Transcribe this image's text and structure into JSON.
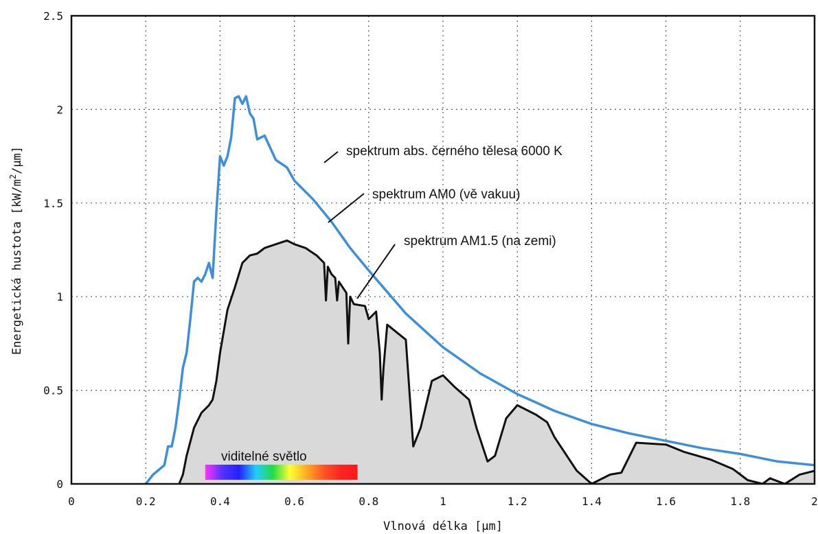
{
  "chart_data": {
    "type": "line",
    "xlabel": "Vlnová délka [µm]",
    "ylabel": "Energetická hustota [kW/m2/µm]",
    "ylabel_main": "Energetická hustota [kW/m",
    "ylabel_sup": "2",
    "ylabel_tail": "/µm]",
    "xlim": [
      0,
      2
    ],
    "ylim": [
      0,
      2.5
    ],
    "x_ticks": [
      0,
      0.2,
      0.4,
      0.6,
      0.8,
      1,
      1.2,
      1.4,
      1.6,
      1.8,
      2
    ],
    "x_tick_labels": [
      "0",
      "0.2",
      "0.4",
      "0.6",
      "0.8",
      "1",
      "1.2",
      "1.4",
      "1.6",
      "1.8",
      "2"
    ],
    "y_ticks": [
      0,
      0.5,
      1,
      1.5,
      2,
      2.5
    ],
    "y_tick_labels": [
      "0",
      "0.5",
      "1",
      "1.5",
      "2",
      "2.5"
    ],
    "grid": true,
    "series": [
      {
        "name": "spektrum AM0 (vě vakuu)",
        "color": "#3b8fdc",
        "x": [
          0.2,
          0.22,
          0.25,
          0.26,
          0.27,
          0.28,
          0.29,
          0.3,
          0.31,
          0.32,
          0.33,
          0.34,
          0.35,
          0.36,
          0.37,
          0.38,
          0.39,
          0.4,
          0.41,
          0.42,
          0.43,
          0.44,
          0.45,
          0.46,
          0.47,
          0.48,
          0.49,
          0.5,
          0.52,
          0.55,
          0.58,
          0.6,
          0.65,
          0.7,
          0.75,
          0.8,
          0.9,
          1.0,
          1.1,
          1.2,
          1.3,
          1.4,
          1.5,
          1.6,
          1.7,
          1.8,
          1.9,
          2.0
        ],
        "y": [
          0.0,
          0.05,
          0.1,
          0.2,
          0.2,
          0.3,
          0.45,
          0.62,
          0.7,
          0.88,
          1.08,
          1.1,
          1.08,
          1.12,
          1.18,
          1.1,
          1.45,
          1.75,
          1.7,
          1.75,
          1.85,
          2.06,
          2.07,
          2.03,
          2.07,
          1.98,
          1.95,
          1.84,
          1.86,
          1.73,
          1.69,
          1.62,
          1.52,
          1.4,
          1.26,
          1.14,
          0.91,
          0.73,
          0.59,
          0.48,
          0.39,
          0.32,
          0.27,
          0.23,
          0.19,
          0.16,
          0.12,
          0.1
        ]
      },
      {
        "name": "spektrum AM1.5 (na zemi)",
        "color": "#111111",
        "fill": "#d9d9d9",
        "x": [
          0.29,
          0.3,
          0.31,
          0.33,
          0.35,
          0.37,
          0.38,
          0.39,
          0.4,
          0.42,
          0.44,
          0.46,
          0.48,
          0.5,
          0.52,
          0.55,
          0.58,
          0.6,
          0.63,
          0.66,
          0.68,
          0.685,
          0.69,
          0.7,
          0.71,
          0.715,
          0.72,
          0.74,
          0.745,
          0.75,
          0.76,
          0.79,
          0.8,
          0.81,
          0.82,
          0.83,
          0.835,
          0.84,
          0.85,
          0.9,
          0.92,
          0.94,
          0.97,
          1.0,
          1.03,
          1.07,
          1.09,
          1.12,
          1.14,
          1.17,
          1.2,
          1.25,
          1.28,
          1.3,
          1.36,
          1.4,
          1.45,
          1.48,
          1.52,
          1.6,
          1.65,
          1.72,
          1.78,
          1.82,
          1.86,
          1.88,
          1.92,
          1.96,
          2.0
        ],
        "y": [
          0.0,
          0.05,
          0.15,
          0.3,
          0.38,
          0.42,
          0.45,
          0.55,
          0.7,
          0.93,
          1.05,
          1.18,
          1.22,
          1.23,
          1.26,
          1.28,
          1.3,
          1.28,
          1.26,
          1.22,
          1.18,
          0.98,
          1.16,
          1.12,
          1.1,
          0.98,
          1.08,
          1.02,
          0.75,
          1.0,
          0.96,
          0.95,
          0.88,
          0.9,
          0.92,
          0.7,
          0.45,
          0.62,
          0.85,
          0.77,
          0.2,
          0.3,
          0.55,
          0.58,
          0.52,
          0.45,
          0.3,
          0.12,
          0.15,
          0.35,
          0.42,
          0.37,
          0.33,
          0.25,
          0.07,
          0.0,
          0.05,
          0.06,
          0.22,
          0.21,
          0.17,
          0.13,
          0.08,
          0.02,
          0.0,
          0.03,
          0.0,
          0.05,
          0.07
        ]
      }
    ],
    "annotations": {
      "blackbody": "spektrum abs. černého tělesa 6000 K",
      "am0": "spektrum AM0 (vě vakuu)",
      "am15": "spektrum AM1.5 (na zemi)",
      "visible": "viditelné světlo"
    },
    "visible_band": {
      "x_range": [
        0.36,
        0.77
      ],
      "colors": [
        "#ff33ff",
        "#5533ff",
        "#2222ff",
        "#22ccff",
        "#22dd44",
        "#ffff33",
        "#ffaa22",
        "#ff5522",
        "#ff2222",
        "#ff1a1a"
      ]
    }
  }
}
